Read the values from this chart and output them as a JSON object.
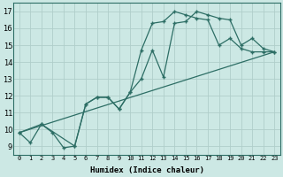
{
  "xlabel": "Humidex (Indice chaleur)",
  "bg_color": "#cce8e4",
  "line_color": "#2d6e65",
  "grid_color": "#b8d8d4",
  "xlim": [
    -0.5,
    23.5
  ],
  "ylim": [
    8.5,
    17.5
  ],
  "xticks": [
    0,
    1,
    2,
    3,
    4,
    5,
    6,
    7,
    8,
    9,
    10,
    11,
    12,
    13,
    14,
    15,
    16,
    17,
    18,
    19,
    20,
    21,
    22,
    23
  ],
  "yticks": [
    9,
    10,
    11,
    12,
    13,
    14,
    15,
    16,
    17
  ],
  "line1_x": [
    0,
    1,
    2,
    3,
    4,
    5,
    6,
    7,
    8,
    9,
    10,
    11,
    12,
    13,
    14,
    15,
    16,
    17,
    18,
    19,
    20,
    21,
    22,
    23
  ],
  "line1_y": [
    9.8,
    9.2,
    10.3,
    9.8,
    8.9,
    9.0,
    11.5,
    11.9,
    11.9,
    11.2,
    12.2,
    13.0,
    14.7,
    13.1,
    16.3,
    16.4,
    17.0,
    16.8,
    16.6,
    16.5,
    15.0,
    15.4,
    14.8,
    14.6
  ],
  "line2_x": [
    0,
    2,
    5,
    6,
    7,
    8,
    9,
    10,
    11,
    12,
    13,
    14,
    15,
    16,
    17,
    18,
    19,
    20,
    21,
    22,
    23
  ],
  "line2_y": [
    9.8,
    10.3,
    9.0,
    11.5,
    11.9,
    11.9,
    11.2,
    12.2,
    14.7,
    16.3,
    16.4,
    17.0,
    16.8,
    16.6,
    16.5,
    15.0,
    15.4,
    14.8,
    14.6,
    14.6,
    14.6
  ],
  "line3_x": [
    0,
    23
  ],
  "line3_y": [
    9.8,
    14.6
  ]
}
